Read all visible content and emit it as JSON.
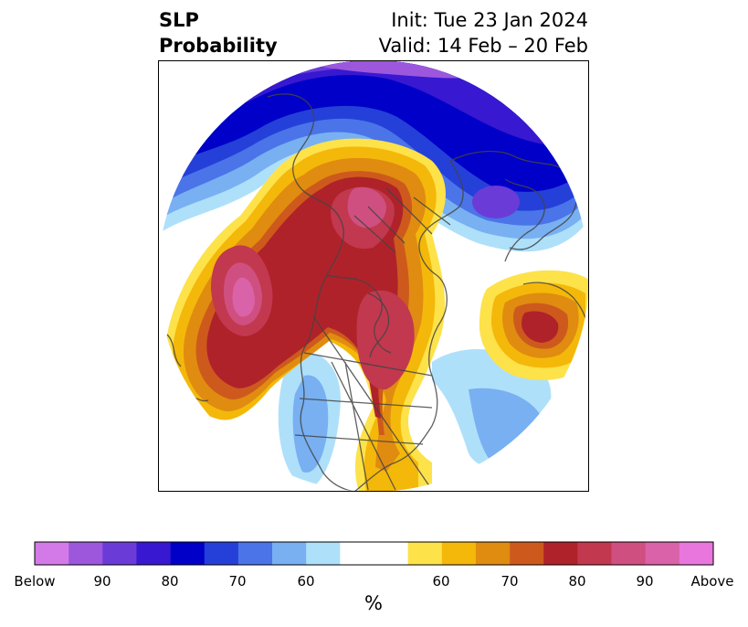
{
  "header": {
    "title_line1": "SLP",
    "title_line2": "Probability",
    "init": "Init: Tue 23 Jan 2024",
    "valid": "Valid: 14 Feb – 20 Feb"
  },
  "colorbar": {
    "unit_label": "%",
    "tick_labels": [
      "Below",
      "90",
      "80",
      "70",
      "60",
      "60",
      "70",
      "80",
      "90",
      "Above"
    ],
    "below_colors": [
      "#d47ae8",
      "#9d57dd",
      "#6b3bd8",
      "#3818d0",
      "#0000c8",
      "#2440d8",
      "#4a74e8",
      "#78b0f2",
      "#aee0fa"
    ],
    "neutral_color": "#ffffff",
    "above_colors": [
      "#fde24a",
      "#f4b80a",
      "#e08c10",
      "#cd5a1c",
      "#b0222a",
      "#c2384f",
      "#cf5080",
      "#da62a8",
      "#e876dc"
    ]
  }
}
